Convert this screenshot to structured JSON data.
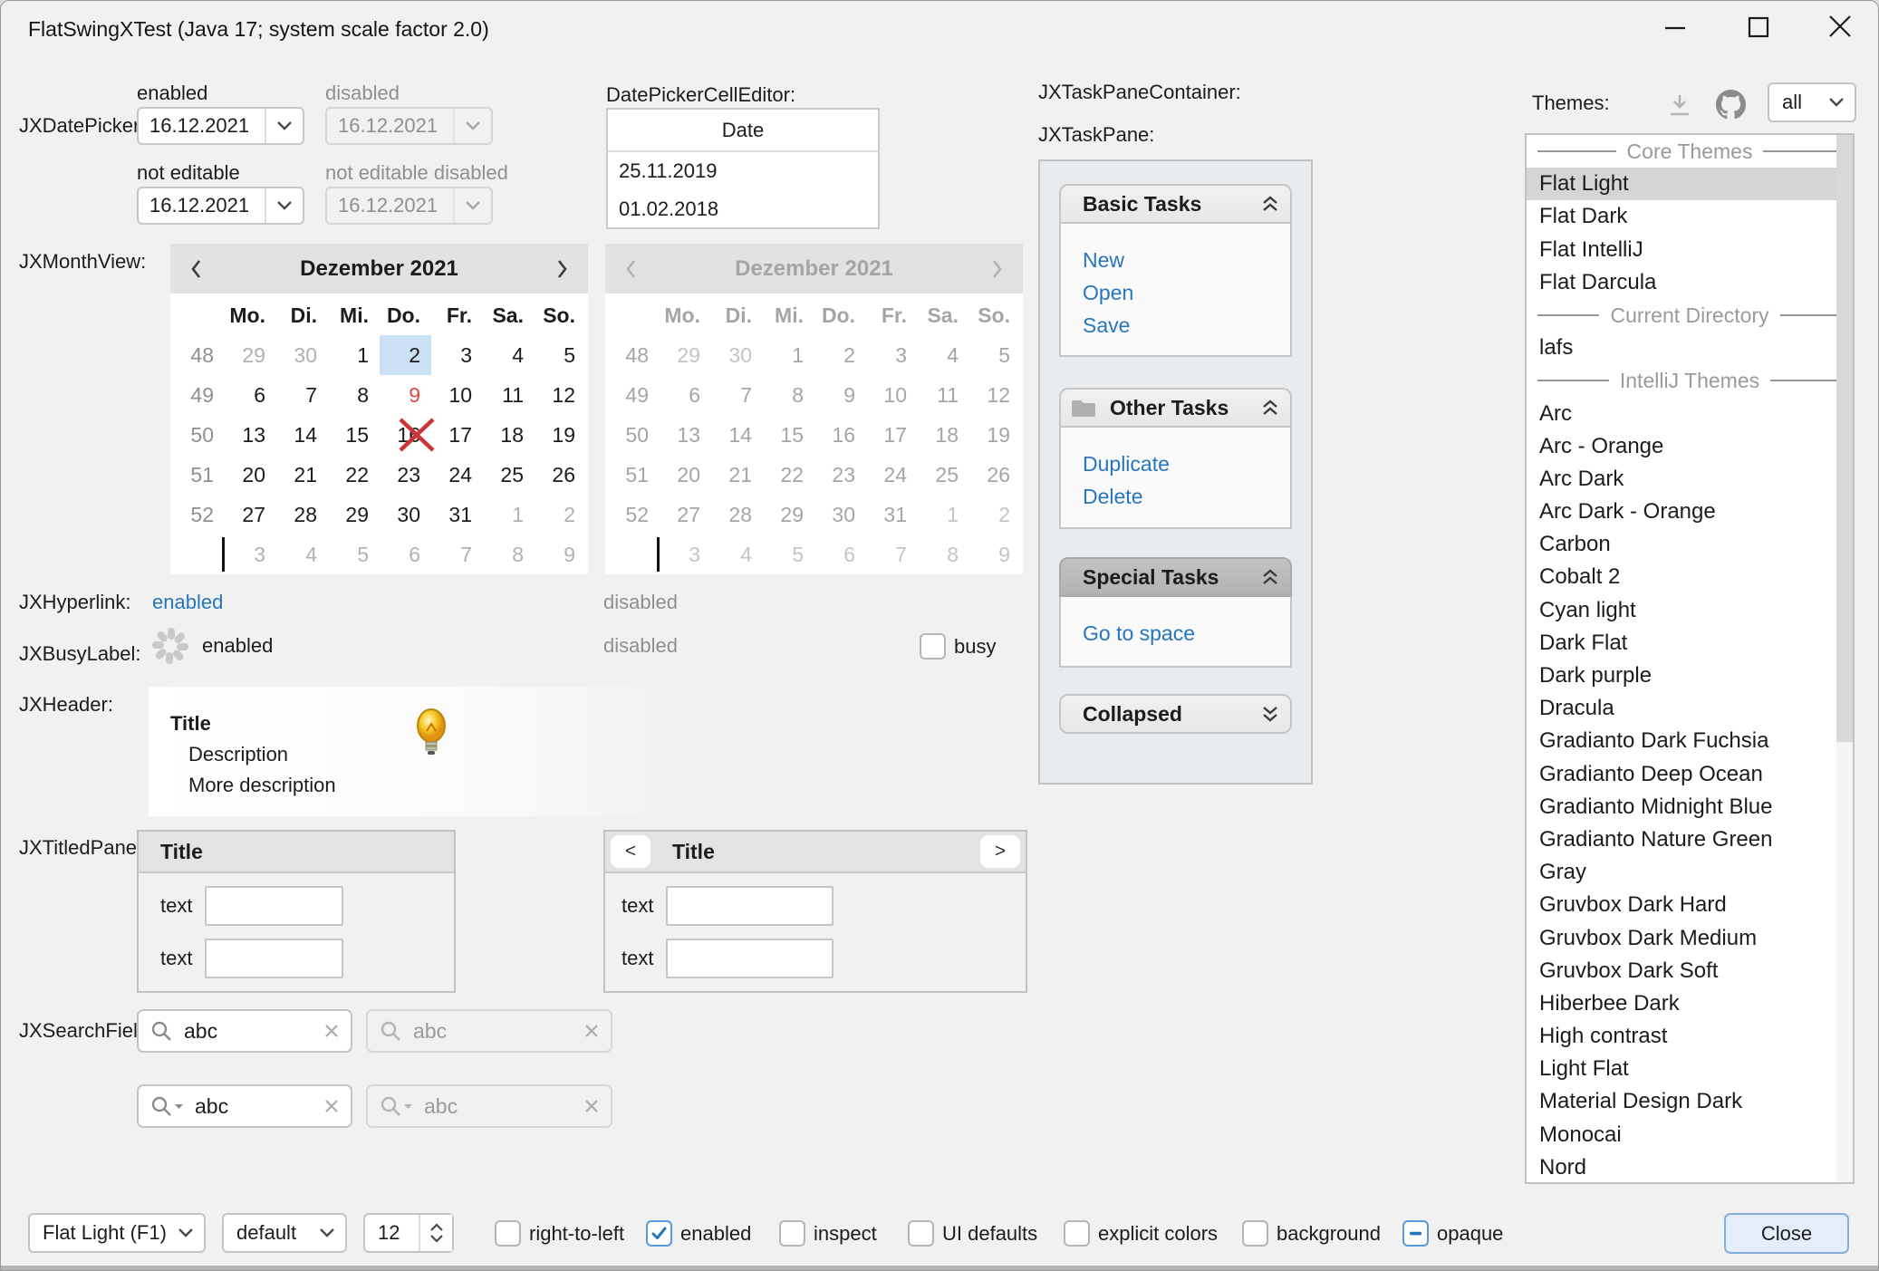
{
  "window": {
    "title": "FlatSwingXTest (Java 17;  system scale factor 2.0)",
    "controls": {
      "minimize": "minimize",
      "maximize": "maximize",
      "close": "close"
    }
  },
  "sections": {
    "date_picker_label": "JXDatePicker:",
    "month_view_label": "JXMonthView:",
    "hyperlink_label": "JXHyperlink:",
    "busy_label_label": "JXBusyLabel:",
    "header_label": "JXHeader:",
    "titled_panel_label": "JXTitledPanel:",
    "search_field_label": "JXSearchField:",
    "cell_editor_label": "DatePickerCellEditor:",
    "task_pane_container_label": "JXTaskPaneContainer:",
    "task_pane_label": "JXTaskPane:",
    "themes_label": "Themes:"
  },
  "date_picker": {
    "value": "16.12.2021",
    "fields": [
      {
        "caption": "enabled",
        "disabled": false
      },
      {
        "caption": "disabled",
        "disabled": true
      },
      {
        "caption": "not editable",
        "disabled": false
      },
      {
        "caption": "not editable disabled",
        "disabled": true
      }
    ]
  },
  "cell_editor_table": {
    "column": "Date",
    "rows": [
      "25.11.2019",
      "01.02.2018"
    ]
  },
  "month_view": {
    "title": "Dezember 2021",
    "day_headers": [
      "Mo.",
      "Di.",
      "Mi.",
      "Do.",
      "Fr.",
      "Sa.",
      "So."
    ],
    "week_numbers": [
      "48",
      "49",
      "50",
      "51",
      "52",
      ""
    ],
    "weeks": [
      [
        {
          "d": "29",
          "muted": true
        },
        {
          "d": "30",
          "muted": true
        },
        {
          "d": "1"
        },
        {
          "d": "2",
          "selected": true
        },
        {
          "d": "3"
        },
        {
          "d": "4"
        },
        {
          "d": "5"
        }
      ],
      [
        {
          "d": "6"
        },
        {
          "d": "7"
        },
        {
          "d": "8"
        },
        {
          "d": "9",
          "today": true
        },
        {
          "d": "10"
        },
        {
          "d": "11"
        },
        {
          "d": "12"
        }
      ],
      [
        {
          "d": "13"
        },
        {
          "d": "14"
        },
        {
          "d": "15"
        },
        {
          "d": "16",
          "crossed": true
        },
        {
          "d": "17"
        },
        {
          "d": "18"
        },
        {
          "d": "19"
        }
      ],
      [
        {
          "d": "20"
        },
        {
          "d": "21"
        },
        {
          "d": "22"
        },
        {
          "d": "23"
        },
        {
          "d": "24"
        },
        {
          "d": "25"
        },
        {
          "d": "26"
        }
      ],
      [
        {
          "d": "27"
        },
        {
          "d": "28"
        },
        {
          "d": "29"
        },
        {
          "d": "30"
        },
        {
          "d": "31"
        },
        {
          "d": "1",
          "muted": true
        },
        {
          "d": "2",
          "muted": true
        }
      ],
      [
        {
          "d": "3",
          "muted": true
        },
        {
          "d": "4",
          "muted": true
        },
        {
          "d": "5",
          "muted": true
        },
        {
          "d": "6",
          "muted": true
        },
        {
          "d": "7",
          "muted": true
        },
        {
          "d": "8",
          "muted": true
        },
        {
          "d": "9",
          "muted": true
        }
      ]
    ],
    "calendars": [
      {
        "disabled": false
      },
      {
        "disabled": true
      }
    ]
  },
  "hyperlink": {
    "enabled_text": "enabled",
    "disabled_text": "disabled"
  },
  "busy": {
    "enabled_text": "enabled",
    "disabled_text": "disabled",
    "checkbox_label": "busy",
    "checkbox_state": "unchecked"
  },
  "header_panel": {
    "title": "Title",
    "description": "Description",
    "more": "More description",
    "icon": "lightbulb-icon"
  },
  "titled_panels": [
    {
      "title": "Title",
      "field_label_1": "text",
      "field_label_2": "text",
      "value_1": "",
      "value_2": ""
    },
    {
      "title": "Title",
      "field_label_1": "text",
      "field_label_2": "text",
      "value_1": "",
      "value_2": "",
      "prev_button": "<",
      "next_button": ">"
    }
  ],
  "search_fields": [
    {
      "value": "abc",
      "disabled": false,
      "dropdown": false
    },
    {
      "value": "abc",
      "disabled": true,
      "dropdown": false
    },
    {
      "value": "abc",
      "disabled": false,
      "dropdown": true
    },
    {
      "value": "abc",
      "disabled": true,
      "dropdown": true
    }
  ],
  "task_panes": [
    {
      "title": "Basic Tasks",
      "icon": null,
      "collapsed": false,
      "highlight": false,
      "links": [
        "New",
        "Open",
        "Save"
      ]
    },
    {
      "title": "Other Tasks",
      "icon": "folder-icon",
      "collapsed": false,
      "highlight": false,
      "links": [
        "Duplicate",
        "Delete"
      ]
    },
    {
      "title": "Special Tasks",
      "icon": null,
      "collapsed": false,
      "highlight": true,
      "links": [
        "Go to space"
      ]
    },
    {
      "title": "Collapsed",
      "icon": null,
      "collapsed": true,
      "highlight": false,
      "links": []
    }
  ],
  "themes": {
    "label": "Themes:",
    "toolbar_icons": [
      "download-icon",
      "github-icon"
    ],
    "filter_value": "all",
    "list": [
      {
        "type": "separator",
        "label": "Core Themes"
      },
      {
        "type": "item",
        "label": "Flat Light",
        "selected": true
      },
      {
        "type": "item",
        "label": "Flat Dark"
      },
      {
        "type": "item",
        "label": "Flat IntelliJ"
      },
      {
        "type": "item",
        "label": "Flat Darcula"
      },
      {
        "type": "separator",
        "label": "Current Directory"
      },
      {
        "type": "item",
        "label": "lafs"
      },
      {
        "type": "separator",
        "label": "IntelliJ Themes"
      },
      {
        "type": "item",
        "label": "Arc"
      },
      {
        "type": "item",
        "label": "Arc - Orange"
      },
      {
        "type": "item",
        "label": "Arc Dark"
      },
      {
        "type": "item",
        "label": "Arc Dark - Orange"
      },
      {
        "type": "item",
        "label": "Carbon"
      },
      {
        "type": "item",
        "label": "Cobalt 2"
      },
      {
        "type": "item",
        "label": "Cyan light"
      },
      {
        "type": "item",
        "label": "Dark Flat"
      },
      {
        "type": "item",
        "label": "Dark purple"
      },
      {
        "type": "item",
        "label": "Dracula"
      },
      {
        "type": "item",
        "label": "Gradianto Dark Fuchsia"
      },
      {
        "type": "item",
        "label": "Gradianto Deep Ocean"
      },
      {
        "type": "item",
        "label": "Gradianto Midnight Blue"
      },
      {
        "type": "item",
        "label": "Gradianto Nature Green"
      },
      {
        "type": "item",
        "label": "Gray"
      },
      {
        "type": "item",
        "label": "Gruvbox Dark Hard"
      },
      {
        "type": "item",
        "label": "Gruvbox Dark Medium"
      },
      {
        "type": "item",
        "label": "Gruvbox Dark Soft"
      },
      {
        "type": "item",
        "label": "Hiberbee Dark"
      },
      {
        "type": "item",
        "label": "High contrast"
      },
      {
        "type": "item",
        "label": "Light Flat"
      },
      {
        "type": "item",
        "label": "Material Design Dark"
      },
      {
        "type": "item",
        "label": "Monocai"
      },
      {
        "type": "item",
        "label": "Nord"
      }
    ]
  },
  "bottom_bar": {
    "laf_combo": "Flat Light (F1)",
    "style_combo": "default",
    "font_size_spinner": "12",
    "checkboxes": [
      {
        "label": "right-to-left",
        "state": "unchecked"
      },
      {
        "label": "enabled",
        "state": "checked"
      },
      {
        "label": "inspect",
        "state": "unchecked"
      },
      {
        "label": "UI defaults",
        "state": "unchecked"
      },
      {
        "label": "explicit colors",
        "state": "unchecked"
      },
      {
        "label": "background",
        "state": "unchecked"
      },
      {
        "label": "opaque",
        "state": "indeterminate"
      }
    ],
    "close_button": "Close"
  },
  "colors": {
    "accent": "#2675bf",
    "link": "#2675bf",
    "day_selection": "#cbe0f4",
    "today_red": "#e04a43",
    "cross_red": "#cf3434",
    "list_selection": "#d5d5d5",
    "panel_bg": "#f1f1f1",
    "taskpane_container_bg": "#e8ecef",
    "header_gray": "#e2e2e2"
  }
}
